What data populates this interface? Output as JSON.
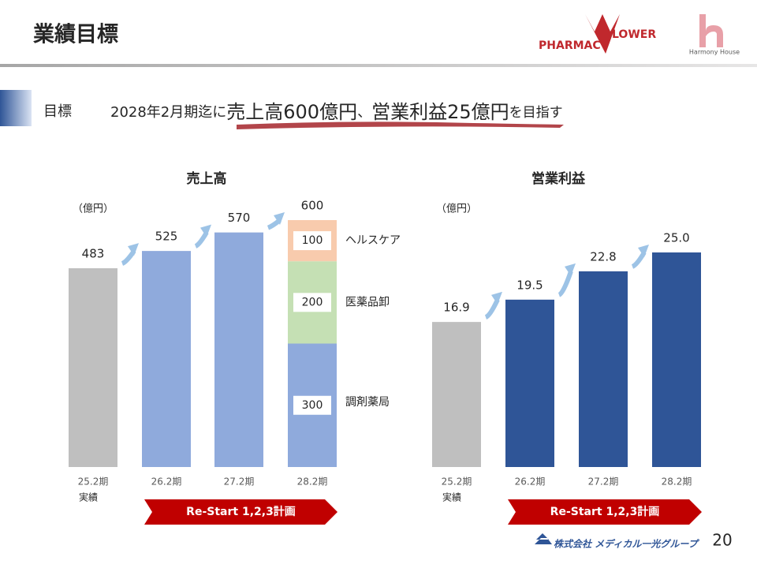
{
  "slide": {
    "title": "業績目標",
    "logo_left_a": "PHARMAC",
    "logo_left_b": "LOWER",
    "logo_right": "Harmony House",
    "heading_label": "目標",
    "target_parts": [
      "2028年2月期迄に",
      "売上高600億円",
      "、",
      "営業利益25億円",
      "を目指す"
    ],
    "footer_company": "株式会社 メディカル一光グループ",
    "page_number": "20"
  },
  "chart_data": [
    {
      "type": "bar",
      "title": "売上高",
      "unit_label": "（億円）",
      "categories": [
        "25.2期",
        "26.2期",
        "27.2期",
        "28.2期"
      ],
      "category_notes": [
        "実績",
        null,
        null,
        null
      ],
      "values": [
        483,
        525,
        570,
        600
      ],
      "colors": [
        "#bfbfbf",
        "#8faadc",
        "#8faadc",
        null
      ],
      "stack_of_last": [
        {
          "name": "調剤薬局",
          "color": "#8faadc",
          "value": 300
        },
        {
          "name": "医薬品卸",
          "color": "#c5e0b4",
          "value": 200
        },
        {
          "name": "ヘルスケア",
          "color": "#f8cbad",
          "value": 100
        }
      ],
      "ylim": [
        0,
        600
      ],
      "annotation": "Re-Start 1,2,3計画",
      "annotation_color": "#c00000"
    },
    {
      "type": "bar",
      "title": "営業利益",
      "unit_label": "（億円）",
      "categories": [
        "25.2期",
        "26.2期",
        "27.2期",
        "28.2期"
      ],
      "category_notes": [
        "実績",
        null,
        null,
        null
      ],
      "values": [
        16.9,
        19.5,
        22.8,
        25.0
      ],
      "value_labels": [
        "16.9",
        "19.5",
        "22.8",
        "25.0"
      ],
      "colors": [
        "#bfbfbf",
        "#2f5597",
        "#2f5597",
        "#2f5597"
      ],
      "ylim": [
        0,
        25
      ],
      "annotation": "Re-Start 1,2,3計画",
      "annotation_color": "#c00000"
    }
  ]
}
